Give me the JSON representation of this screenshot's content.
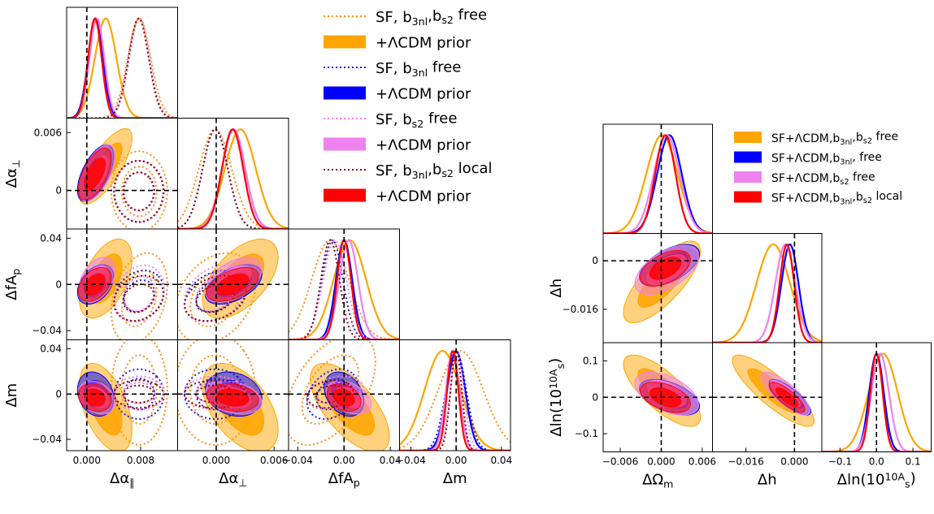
{
  "figure": {
    "left_title": "",
    "right_title": ""
  },
  "chart_data": [
    {
      "type": "scatter",
      "name": "corner-plot-left",
      "parameters": [
        {
          "id": "dapar",
          "label": "Δα_∥",
          "range": [
            -0.003,
            0.0135
          ],
          "ticks": [
            0.0,
            0.008
          ],
          "tick_labels": [
            "0.000",
            "0.008"
          ],
          "truth": 0.0
        },
        {
          "id": "daper",
          "label": "Δα_⊥",
          "range": [
            -0.004,
            0.0075
          ],
          "ticks": [
            0.0,
            0.006
          ],
          "tick_labels": [
            "0.000",
            "0.006"
          ],
          "truth": 0.0
        },
        {
          "id": "dfap",
          "label": "ΔfA_p",
          "range": [
            -0.048,
            0.048
          ],
          "ticks": [
            -0.04,
            0.0,
            0.04
          ],
          "tick_labels": [
            "−0.04",
            "0.00",
            "0.04"
          ],
          "truth": 0.0
        },
        {
          "id": "dm",
          "label": "Δm",
          "range": [
            -0.05,
            0.048
          ],
          "ticks": [
            -0.04,
            0.0,
            0.04
          ],
          "tick_labels": [
            "−0.04",
            "0.00",
            "0.04"
          ],
          "truth": 0.0
        }
      ],
      "y_tick_labels": {
        "daper": [
          "0",
          "0.006"
        ],
        "dfap": [
          "−0.04",
          "0",
          "0.04"
        ],
        "dm": [
          "−0.04",
          "0",
          "0.04"
        ]
      },
      "x_tick_labels": {
        "dapar": [
          "0.000",
          "0.008"
        ],
        "daper": [
          "0.000",
          "0.006"
        ],
        "dfap": [
          "−0.04",
          "0.00",
          "0.04"
        ],
        "dm": [
          "−0.04",
          "0.00",
          "0.04"
        ]
      },
      "series": [
        {
          "name": "SF, b_3nl,b_s2 free",
          "style": "dotted",
          "color": "#ff8c1a",
          "mean": {
            "dapar": 0.0078,
            "daper": -0.0001,
            "dfap": -0.012,
            "dm": 0.004
          },
          "sigma": {
            "dapar": 0.0017,
            "daper": 0.0017,
            "dfap": 0.016,
            "dm": 0.02
          },
          "corr": {
            "dapar|daper": 0.0,
            "dapar|dfap": 0.3,
            "daper|dfap": 0.3,
            "dapar|dm": 0.0,
            "daper|dm": 0.0,
            "dfap|dm": 0.5
          }
        },
        {
          "name": "+ΛCDM prior",
          "style": "filled",
          "color": "#ffa500",
          "mean": {
            "dapar": 0.0028,
            "daper": 0.0025,
            "dfap": 0.005,
            "dm": -0.012
          },
          "sigma": {
            "dapar": 0.0016,
            "daper": 0.0016,
            "dfap": 0.014,
            "dm": 0.016
          },
          "corr": {
            "dapar|daper": 0.75,
            "dapar|dfap": 0.5,
            "daper|dfap": 0.55,
            "dapar|dm": -0.5,
            "daper|dm": -0.5,
            "dfap|dm": -0.65
          }
        },
        {
          "name": "SF, b_3nl free",
          "style": "dotted",
          "color": "#1f1fd6",
          "mean": {
            "dapar": 0.0078,
            "daper": -0.0001,
            "dfap": -0.01,
            "dm": 0.0
          },
          "sigma": {
            "dapar": 0.0015,
            "daper": 0.0013,
            "dfap": 0.009,
            "dm": 0.009
          },
          "corr": {
            "dapar|daper": 0.0,
            "dapar|dfap": 0.2,
            "daper|dfap": 0.3,
            "dapar|dm": 0.0,
            "daper|dm": 0.0,
            "dfap|dm": 0.3
          }
        },
        {
          "name": "+ΛCDM prior",
          "style": "filled",
          "color": "#0000ff",
          "mean": {
            "dapar": 0.0013,
            "daper": 0.0018,
            "dfap": 0.0,
            "dm": 0.0
          },
          "sigma": {
            "dapar": 0.0011,
            "daper": 0.0012,
            "dfap": 0.007,
            "dm": 0.008
          },
          "corr": {
            "dapar|daper": 0.6,
            "dapar|dfap": 0.4,
            "daper|dfap": 0.5,
            "dapar|dm": -0.2,
            "daper|dm": -0.2,
            "dfap|dm": -0.3
          }
        },
        {
          "name": "SF, b_s2 free",
          "style": "dotted",
          "color": "#ee82ee",
          "mean": {
            "dapar": 0.0078,
            "daper": -0.0001,
            "dfap": -0.008,
            "dm": 0.001
          },
          "sigma": {
            "dapar": 0.0015,
            "daper": 0.0013,
            "dfap": 0.01,
            "dm": 0.006
          },
          "corr": {
            "dapar|daper": 0.0,
            "dapar|dfap": 0.2,
            "daper|dfap": 0.3,
            "dapar|dm": 0.0,
            "daper|dm": 0.0,
            "dfap|dm": 0.3
          }
        },
        {
          "name": "+ΛCDM prior",
          "style": "filled",
          "color": "#ee82ee",
          "mean": {
            "dapar": 0.0015,
            "daper": 0.0018,
            "dfap": 0.004,
            "dm": -0.003
          },
          "sigma": {
            "dapar": 0.0011,
            "daper": 0.0012,
            "dfap": 0.008,
            "dm": 0.006
          },
          "corr": {
            "dapar|daper": 0.6,
            "dapar|dfap": 0.4,
            "daper|dfap": 0.5,
            "dapar|dm": -0.3,
            "daper|dm": -0.3,
            "dfap|dm": -0.4
          }
        },
        {
          "name": "SF, b_3nl,b_s2 local",
          "style": "dotted",
          "color": "#8b0000",
          "mean": {
            "dapar": 0.0077,
            "daper": -0.0001,
            "dfap": -0.012,
            "dm": 0.0
          },
          "sigma": {
            "dapar": 0.0015,
            "daper": 0.0013,
            "dfap": 0.008,
            "dm": 0.005
          },
          "corr": {
            "dapar|daper": 0.0,
            "dapar|dfap": 0.2,
            "daper|dfap": 0.3,
            "dapar|dm": 0.0,
            "daper|dm": 0.0,
            "dfap|dm": 0.2
          }
        },
        {
          "name": "+ΛCDM prior",
          "style": "filled",
          "color": "#ff0000",
          "mean": {
            "dapar": 0.0012,
            "daper": 0.0017,
            "dfap": 0.0,
            "dm": -0.003
          },
          "sigma": {
            "dapar": 0.001,
            "daper": 0.0011,
            "dfap": 0.006,
            "dm": 0.005
          },
          "corr": {
            "dapar|daper": 0.6,
            "dapar|dfap": 0.4,
            "daper|dfap": 0.5,
            "dapar|dm": -0.2,
            "daper|dm": -0.2,
            "dfap|dm": -0.3
          }
        }
      ],
      "legend": {
        "placement": "upper-right of triangle",
        "entries": [
          {
            "text": "SF, b_3nl,b_s2 free",
            "style": "dotted",
            "color": "#ff8c1a"
          },
          {
            "text": "+ΛCDM prior",
            "style": "filled",
            "color": "#ffa500"
          },
          {
            "text": "SF, b_3nl free",
            "style": "dotted",
            "color": "#1f1fd6"
          },
          {
            "text": "+ΛCDM prior",
            "style": "filled",
            "color": "#0000ff"
          },
          {
            "text": "SF, b_s2 free",
            "style": "dotted",
            "color": "#ee82ee"
          },
          {
            "text": "+ΛCDM prior",
            "style": "filled",
            "color": "#ee82ee"
          },
          {
            "text": "SF, b_3nl,b_s2 local",
            "style": "dotted",
            "color": "#8b0000"
          },
          {
            "text": "+ΛCDM prior",
            "style": "filled",
            "color": "#ff0000"
          }
        ]
      },
      "grid": false
    },
    {
      "type": "scatter",
      "name": "corner-plot-right",
      "parameters": [
        {
          "id": "dom",
          "label": "ΔΩ_m",
          "range": [
            -0.0085,
            0.0075
          ],
          "ticks": [
            -0.006,
            0.0,
            0.006
          ],
          "tick_labels": [
            "−0.006",
            "0.000",
            "0.006"
          ],
          "truth": 0.0
        },
        {
          "id": "dh",
          "label": "Δh",
          "range": [
            -0.027,
            0.009
          ],
          "ticks": [
            -0.016,
            0.0
          ],
          "tick_labels": [
            "−0.016",
            "0.000"
          ],
          "truth": 0.0
        },
        {
          "id": "das",
          "label": "Δln(10^10A_s)",
          "range": [
            -0.15,
            0.15
          ],
          "ticks": [
            -0.1,
            0.0,
            0.1
          ],
          "tick_labels": [
            "−0.1",
            "0.0",
            "0.1"
          ],
          "truth": 0.0
        }
      ],
      "y_tick_labels": {
        "dh": [
          "−0.016",
          "0"
        ],
        "das": [
          "−0.1",
          "0",
          "0.1"
        ]
      },
      "x_tick_labels": {
        "dom": [
          "−0.006",
          "0.000",
          "0.006"
        ],
        "dh": [
          "−0.016",
          "0.000"
        ],
        "das": [
          "−0.1",
          "0.0",
          "0.1"
        ]
      },
      "series": [
        {
          "name": "SF+ΛCDM,b_3nl,b_s2 free",
          "style": "filled",
          "color": "#ffa500",
          "mean": {
            "dom": 0.0001,
            "dh": -0.007,
            "das": 0.018
          },
          "sigma": {
            "dom": 0.0023,
            "dh": 0.0055,
            "das": 0.04
          },
          "corr": {
            "dom|dh": 0.75,
            "dom|das": -0.75,
            "dh|das": -0.85
          }
        },
        {
          "name": "SF+ΛCDM,b_3nl, free",
          "style": "filled",
          "color": "#0000ff",
          "mean": {
            "dom": 0.0012,
            "dh": -0.0015,
            "das": 0.0
          },
          "sigma": {
            "dom": 0.0018,
            "dh": 0.0028,
            "das": 0.02
          },
          "corr": {
            "dom|dh": 0.55,
            "dom|das": -0.5,
            "dh|das": -0.8
          }
        },
        {
          "name": "SF+ΛCDM,b_s2 free",
          "style": "filled",
          "color": "#ee82ee",
          "mean": {
            "dom": 0.0008,
            "dh": -0.003,
            "das": 0.01
          },
          "sigma": {
            "dom": 0.0019,
            "dh": 0.0033,
            "das": 0.024
          },
          "corr": {
            "dom|dh": 0.55,
            "dom|das": -0.5,
            "dh|das": -0.8
          }
        },
        {
          "name": "SF+ΛCDM,b_3nl,b_s2 local",
          "style": "filled",
          "color": "#ff0000",
          "mean": {
            "dom": 0.0006,
            "dh": -0.0025,
            "das": 0.0
          },
          "sigma": {
            "dom": 0.0015,
            "dh": 0.0024,
            "das": 0.017
          },
          "corr": {
            "dom|dh": 0.5,
            "dom|das": -0.45,
            "dh|das": -0.8
          }
        }
      ],
      "legend": {
        "placement": "upper-right",
        "entries": [
          {
            "text": "SF+ΛCDM,b_3nl,b_s2 free",
            "color": "#ffa500"
          },
          {
            "text": "SF+ΛCDM,b_3nl,  free",
            "color": "#0000ff"
          },
          {
            "text": "SF+ΛCDM,b_s2 free",
            "color": "#ee82ee"
          },
          {
            "text": "SF+ΛCDM,b_3nl,b_s2 local",
            "color": "#ff0000"
          }
        ]
      },
      "grid": false
    }
  ]
}
